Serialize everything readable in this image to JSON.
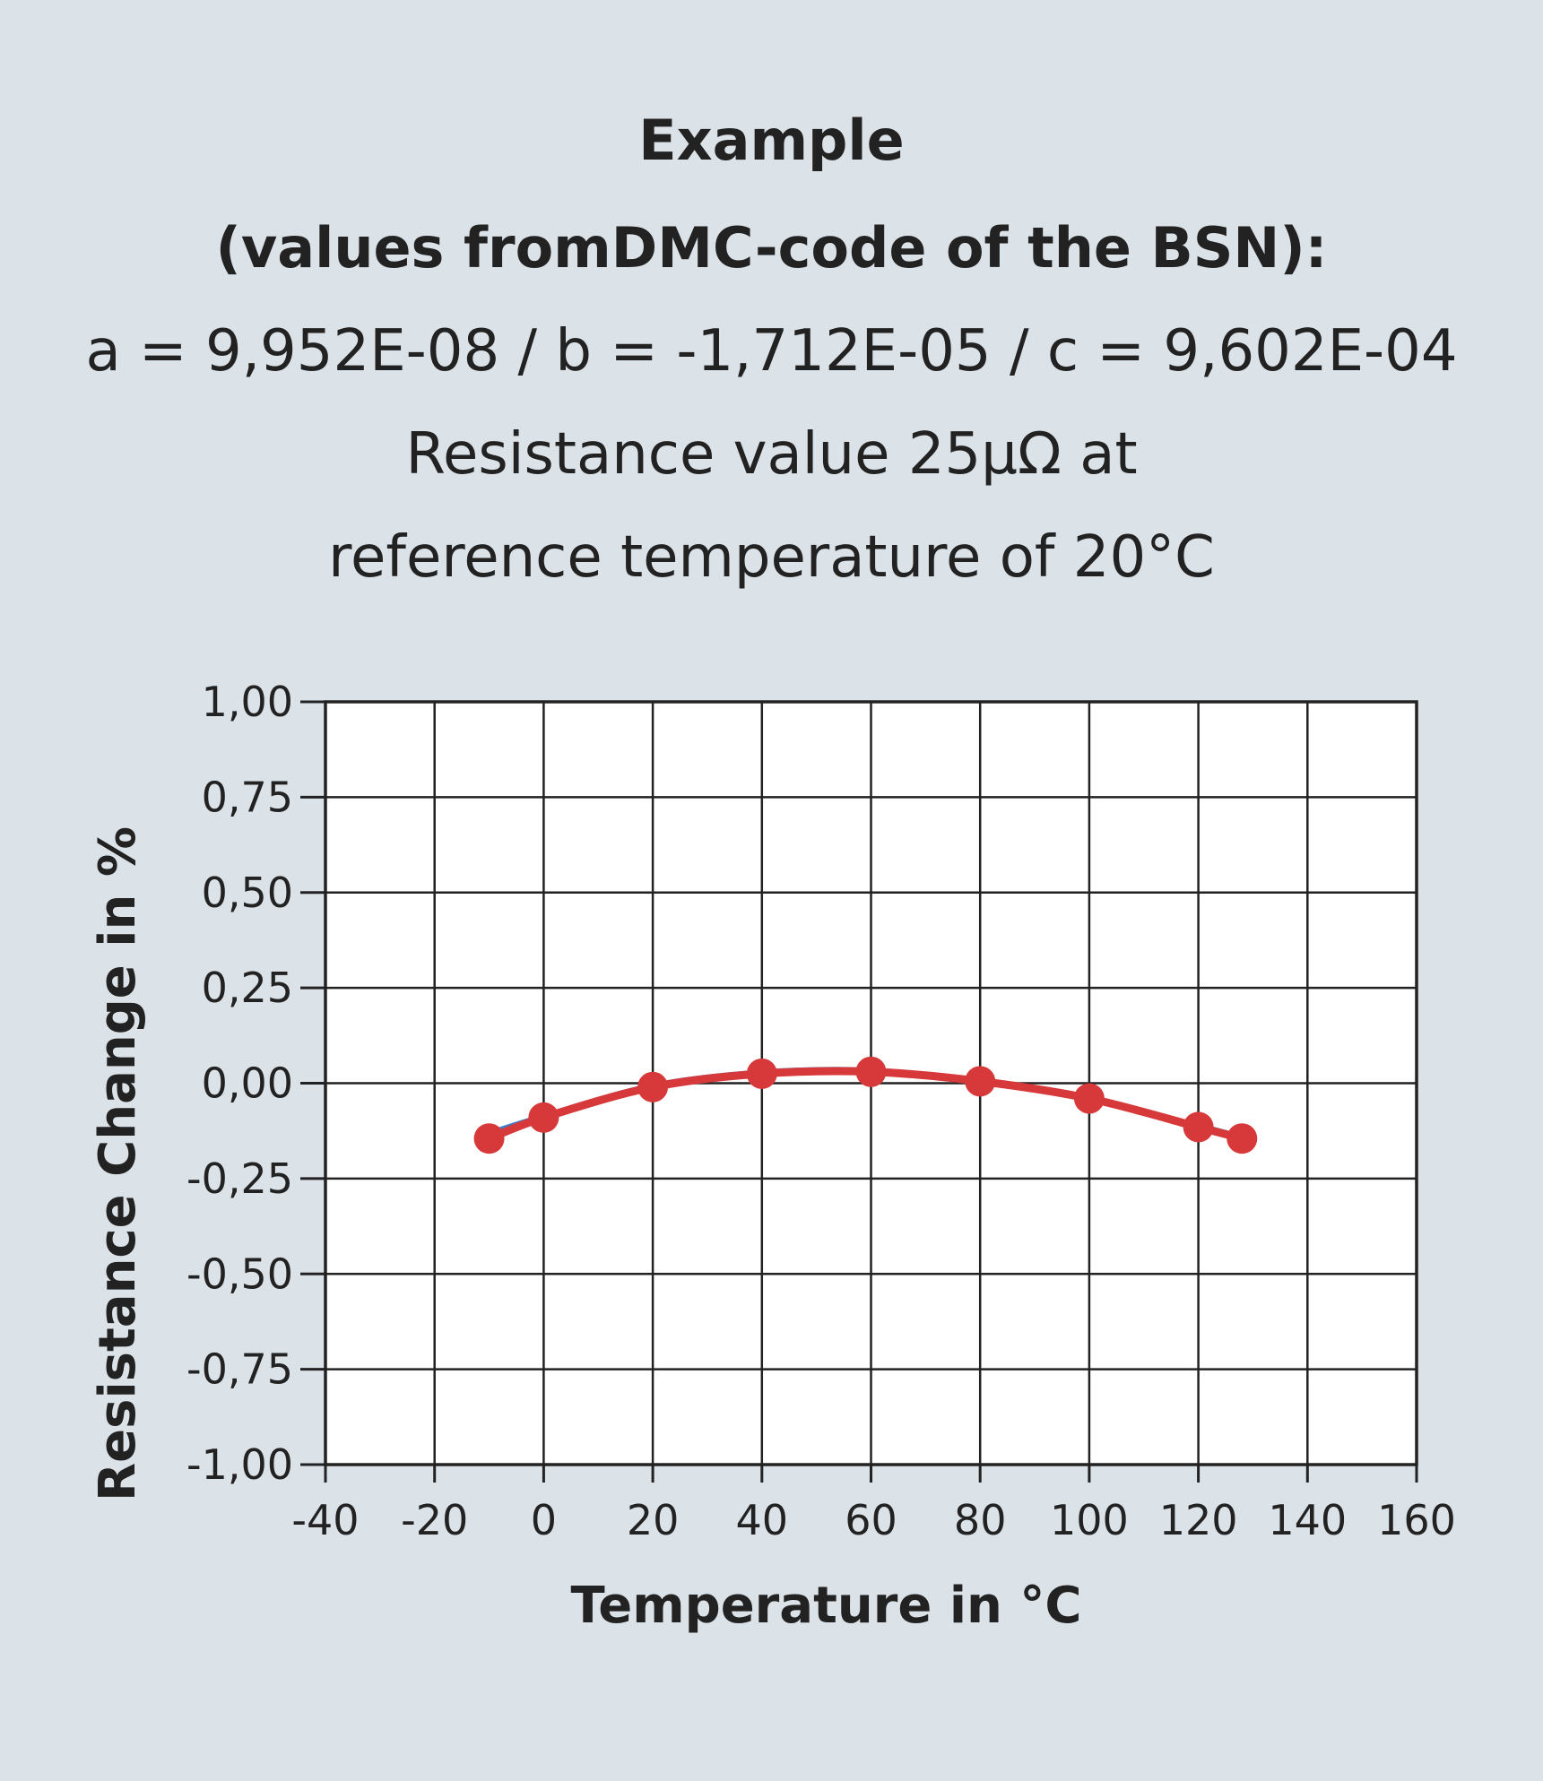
{
  "header": {
    "line1": "Example",
    "line2": "(values fromDMC-code of the BSN):",
    "line3": "a = 9,952E-08 / b = -1,712E-05 / c = 9,602E-04",
    "line4": "Resistance value 25µΩ at",
    "line5": "reference temperature of 20°C"
  },
  "chart_data": {
    "type": "line",
    "title": "",
    "xlabel": "Temperature in °C",
    "ylabel": "Resistance Change in %",
    "xlim": [
      -40,
      160
    ],
    "ylim": [
      -1.0,
      1.0
    ],
    "x_ticks": [
      -40,
      -20,
      0,
      20,
      40,
      60,
      80,
      100,
      120,
      140,
      160
    ],
    "x_tick_labels": [
      "-40",
      "-20",
      "0",
      "20",
      "40",
      "60",
      "80",
      "100",
      "120",
      "140",
      "160"
    ],
    "y_ticks": [
      1.0,
      0.75,
      0.5,
      0.25,
      0.0,
      -0.25,
      -0.5,
      -0.75,
      -1.0
    ],
    "y_tick_labels": [
      "1,00",
      "0,75",
      "0,50",
      "0,25",
      "0,00",
      "-0,25",
      "-0,50",
      "-0,75",
      "-1,00"
    ],
    "grid": true,
    "series": [
      {
        "color": "#3a7fc8",
        "marker": false,
        "x": [
          -10,
          0,
          20,
          40,
          60,
          80,
          100,
          120,
          128
        ],
        "y": [
          -0.13,
          -0.085,
          -0.005,
          0.03,
          0.035,
          0.005,
          -0.04,
          -0.11,
          -0.14
        ]
      },
      {
        "color": "#d7393b",
        "marker": true,
        "x": [
          -10,
          0,
          20,
          40,
          60,
          80,
          100,
          120,
          128
        ],
        "y": [
          -0.145,
          -0.09,
          -0.01,
          0.025,
          0.03,
          0.005,
          -0.04,
          -0.115,
          -0.145
        ]
      }
    ]
  }
}
